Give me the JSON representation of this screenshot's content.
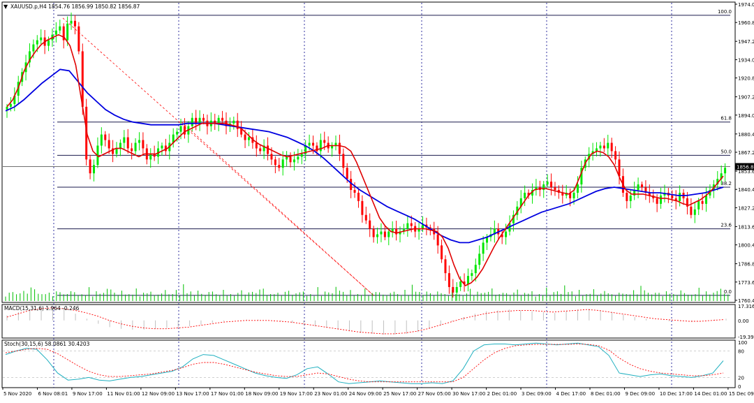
{
  "header": {
    "symbol_line": "XAUUSD.p,H4  1854.76 1856.99 1850.82 1856.87",
    "macd_label": "MACD(15,31,6) 1.964 -0.246",
    "stoch_label": "Stoch(30,15,6) 58.0861 30.4203"
  },
  "colors": {
    "bull": "#00e600",
    "bear": "#ff0000",
    "ma_fast": "#e00000",
    "ma_slow": "#0000e0",
    "fib_line": "#1a1a4d",
    "fan_line": "#ff0000",
    "grid_vertical": "#3030a0",
    "macd_hist": "#c0c0c0",
    "stoch_main": "#20b0c0",
    "stoch_signal": "#ff0000",
    "price_tag_bg": "#000000",
    "price_tag_text": "#ffffff"
  },
  "price_axis": {
    "ticks": [
      "1974.00",
      "1960.80",
      "1947.20",
      "1934.00",
      "1920.80",
      "1907.20",
      "1894.00",
      "1880.40",
      "1867.20",
      "1853.60",
      "1840.40",
      "1827.20",
      "1813.60",
      "1800.40",
      "1786.80",
      "1773.60",
      "1760.40"
    ],
    "current_price": "1856.87"
  },
  "macd_axis": {
    "ticks": [
      "17.316",
      "0.00",
      "-19.392"
    ]
  },
  "stoch_axis": {
    "ticks": [
      "100",
      "80",
      "20",
      "0"
    ]
  },
  "time_axis": {
    "labels": [
      "5 Nov 2020",
      "6 Nov 08:01",
      "9 Nov 17:00",
      "11 Nov 01:00",
      "12 Nov 09:00",
      "13 Nov 17:00",
      "17 Nov 01:00",
      "18 Nov 09:00",
      "19 Nov 17:00",
      "23 Nov 01:00",
      "24 Nov 09:00",
      "25 Nov 17:00",
      "27 Nov 05:00",
      "30 Nov 17:00",
      "2 Dec 01:00",
      "3 Dec 09:00",
      "4 Dec 17:00",
      "8 Dec 01:00",
      "9 Dec 09:00",
      "10 Dec 17:00",
      "14 Dec 01:00",
      "15 Dec 09:00"
    ]
  },
  "fibonacci": [
    {
      "level": "100.0",
      "price": 1966.0
    },
    {
      "level": "61.8",
      "price": 1889.0
    },
    {
      "level": "50.0",
      "price": 1865.0
    },
    {
      "level": "38.2",
      "price": 1842.0
    },
    {
      "level": "23.6",
      "price": 1812.0
    },
    {
      "level": "0.0",
      "price": 1764.0
    }
  ],
  "chart_data": {
    "type": "candlestick",
    "instrument": "XAUUSD.p",
    "timeframe": "H4",
    "ohlc_last": {
      "open": 1854.76,
      "high": 1856.99,
      "low": 1850.82,
      "close": 1856.87
    },
    "ylim": [
      1760.4,
      1974.0
    ],
    "x_labels": [
      "5 Nov 2020",
      "6 Nov 08:01",
      "9 Nov 17:00",
      "11 Nov 01:00",
      "12 Nov 09:00",
      "13 Nov 17:00",
      "17 Nov 01:00",
      "18 Nov 09:00",
      "19 Nov 17:00",
      "23 Nov 01:00",
      "24 Nov 09:00",
      "25 Nov 17:00",
      "27 Nov 05:00",
      "30 Nov 17:00",
      "2 Dec 01:00",
      "3 Dec 09:00",
      "4 Dec 17:00",
      "8 Dec 01:00",
      "9 Dec 09:00",
      "10 Dec 17:00",
      "14 Dec 01:00",
      "15 Dec 09:00"
    ],
    "close_path": [
      1900,
      1902,
      1908,
      1918,
      1925,
      1932,
      1940,
      1945,
      1948,
      1950,
      1944,
      1948,
      1952,
      1955,
      1958,
      1948,
      1960,
      1962,
      1958,
      1940,
      1900,
      1862,
      1852,
      1858,
      1872,
      1880,
      1876,
      1870,
      1866,
      1870,
      1874,
      1878,
      1870,
      1868,
      1874,
      1876,
      1870,
      1862,
      1866,
      1864,
      1870,
      1872,
      1868,
      1874,
      1880,
      1882,
      1886,
      1880,
      1886,
      1892,
      1888,
      1892,
      1890,
      1886,
      1890,
      1888,
      1892,
      1890,
      1886,
      1888,
      1890,
      1884,
      1880,
      1876,
      1878,
      1874,
      1870,
      1868,
      1872,
      1866,
      1862,
      1858,
      1856,
      1862,
      1864,
      1860,
      1862,
      1864,
      1866,
      1872,
      1874,
      1872,
      1868,
      1876,
      1874,
      1870,
      1872,
      1874,
      1866,
      1856,
      1848,
      1840,
      1838,
      1832,
      1822,
      1818,
      1812,
      1806,
      1808,
      1810,
      1806,
      1810,
      1812,
      1808,
      1810,
      1812,
      1816,
      1814,
      1810,
      1812,
      1815,
      1813,
      1812,
      1808,
      1800,
      1790,
      1780,
      1770,
      1766,
      1770,
      1774,
      1772,
      1778,
      1780,
      1786,
      1794,
      1802,
      1806,
      1808,
      1812,
      1808,
      1806,
      1810,
      1816,
      1822,
      1828,
      1834,
      1838,
      1836,
      1840,
      1842,
      1840,
      1844,
      1846,
      1842,
      1840,
      1838,
      1836,
      1838,
      1834,
      1838,
      1844,
      1856,
      1862,
      1866,
      1868,
      1870,
      1872,
      1870,
      1874,
      1868,
      1862,
      1850,
      1838,
      1832,
      1836,
      1840,
      1844,
      1842,
      1838,
      1836,
      1834,
      1830,
      1836,
      1838,
      1836,
      1834,
      1832,
      1838,
      1834,
      1828,
      1822,
      1826,
      1832,
      1830,
      1836,
      1840,
      1844,
      1848,
      1852,
      1856
    ],
    "ma_fast_path": [
      1900,
      1905,
      1914,
      1926,
      1934,
      1940,
      1945,
      1948,
      1950,
      1952,
      1950,
      1944,
      1930,
      1905,
      1880,
      1868,
      1864,
      1866,
      1868,
      1870,
      1870,
      1868,
      1866,
      1864,
      1866,
      1866,
      1866,
      1868,
      1870,
      1874,
      1878,
      1882,
      1884,
      1886,
      1888,
      1888,
      1888,
      1888,
      1888,
      1887,
      1886,
      1884,
      1880,
      1876,
      1873,
      1871,
      1869,
      1867,
      1865,
      1864,
      1865,
      1866,
      1867,
      1868,
      1869,
      1870,
      1872,
      1872,
      1872,
      1871,
      1868,
      1860,
      1850,
      1840,
      1830,
      1820,
      1814,
      1810,
      1809,
      1810,
      1811,
      1812,
      1812,
      1812,
      1811,
      1810,
      1806,
      1798,
      1786,
      1776,
      1771,
      1773,
      1777,
      1783,
      1791,
      1799,
      1806,
      1812,
      1818,
      1824,
      1830,
      1836,
      1840,
      1841,
      1841,
      1840,
      1839,
      1838,
      1837,
      1840,
      1850,
      1860,
      1866,
      1868,
      1867,
      1864,
      1858,
      1848,
      1840,
      1837,
      1837,
      1837,
      1836,
      1835,
      1834,
      1834,
      1833,
      1832,
      1830,
      1829,
      1831,
      1833,
      1836,
      1840,
      1845,
      1850
    ],
    "ma_slow_path": [
      1897,
      1900,
      1905,
      1911,
      1917,
      1922,
      1927,
      1926,
      1918,
      1910,
      1904,
      1898,
      1894,
      1891,
      1889,
      1888,
      1887,
      1887,
      1887,
      1887,
      1888,
      1888,
      1888,
      1888,
      1887,
      1886,
      1885,
      1884,
      1883,
      1882,
      1880,
      1878,
      1875,
      1872,
      1868,
      1863,
      1857,
      1851,
      1845,
      1840,
      1836,
      1832,
      1828,
      1825,
      1822,
      1819,
      1815,
      1811,
      1807,
      1804,
      1802,
      1802,
      1804,
      1806,
      1809,
      1812,
      1815,
      1818,
      1821,
      1824,
      1826,
      1828,
      1830,
      1833,
      1836,
      1839,
      1841,
      1842,
      1841,
      1840,
      1839,
      1838,
      1838,
      1837,
      1836,
      1836,
      1837,
      1838,
      1840,
      1842
    ],
    "volume_relative": [
      0.3,
      0.4,
      0.8,
      0.3,
      0.5,
      0.6,
      0.4,
      1.0,
      0.7,
      0.5,
      0.3,
      0.6,
      0.4,
      0.3,
      0.5,
      0.7,
      0.3,
      0.4,
      0.6,
      0.5,
      0.3
    ],
    "fibonacci_levels": [
      {
        "level": "100.0",
        "price": 1966.0
      },
      {
        "level": "61.8",
        "price": 1889.0
      },
      {
        "level": "50.0",
        "price": 1865.0
      },
      {
        "level": "38.2",
        "price": 1842.0
      },
      {
        "level": "23.6",
        "price": 1812.0
      },
      {
        "level": "0.0",
        "price": 1764.0
      }
    ],
    "macd": {
      "label": "MACD(15,31,6)",
      "value": 1.964,
      "signal": -0.246,
      "ylim": [
        -19.392,
        17.316
      ],
      "hist_path": [
        6,
        10,
        14,
        16,
        17,
        14,
        8,
        2,
        -4,
        -8,
        -10,
        -11,
        -11,
        -10,
        -9,
        -8,
        -7,
        -5,
        -3,
        -1,
        0,
        1,
        1,
        0,
        -1,
        -3,
        -5,
        -7,
        -9,
        -11,
        -13,
        -15,
        -16,
        -17,
        -17,
        -16,
        -14,
        -10,
        -6,
        -1,
        4,
        8,
        11,
        12,
        13,
        12,
        11,
        10,
        9,
        11,
        13,
        14,
        12,
        10,
        7,
        4,
        2,
        0,
        -1,
        -1,
        -2,
        0,
        1,
        2
      ],
      "signal_path": [
        4,
        8,
        12,
        14,
        15,
        14,
        12,
        9,
        5,
        0,
        -4,
        -7,
        -9,
        -10,
        -10,
        -9,
        -8,
        -6,
        -4,
        -2,
        -1,
        0,
        0,
        0,
        -1,
        -2,
        -4,
        -6,
        -8,
        -10,
        -12,
        -14,
        -15,
        -16,
        -16,
        -15,
        -13,
        -10,
        -6,
        -2,
        2,
        5,
        8,
        10,
        11,
        12,
        12,
        11,
        10,
        11,
        12,
        13,
        12,
        10,
        8,
        6,
        4,
        2,
        1,
        0,
        -1,
        -1,
        0,
        1
      ]
    },
    "stochastic": {
      "label": "Stoch(30,15,6)",
      "main_value": 58.0861,
      "signal_value": 30.4203,
      "ylim": [
        0,
        100
      ],
      "levels": [
        80,
        20
      ],
      "main_path": [
        72,
        80,
        86,
        84,
        60,
        30,
        14,
        16,
        20,
        14,
        12,
        16,
        20,
        22,
        26,
        30,
        34,
        44,
        62,
        72,
        70,
        60,
        50,
        40,
        30,
        24,
        20,
        18,
        26,
        40,
        44,
        28,
        10,
        6,
        8,
        10,
        12,
        10,
        8,
        6,
        6,
        8,
        6,
        12,
        40,
        80,
        94,
        96,
        96,
        94,
        96,
        98,
        96,
        94,
        96,
        98,
        94,
        90,
        70,
        30,
        26,
        22,
        26,
        28,
        24,
        22,
        20,
        24,
        30,
        58
      ],
      "signal_path": [
        76,
        80,
        84,
        86,
        84,
        74,
        60,
        46,
        34,
        26,
        22,
        22,
        24,
        26,
        28,
        32,
        36,
        42,
        50,
        54,
        54,
        50,
        44,
        38,
        32,
        28,
        24,
        22,
        22,
        26,
        30,
        28,
        22,
        16,
        12,
        10,
        10,
        10,
        10,
        10,
        10,
        10,
        10,
        10,
        20,
        40,
        60,
        76,
        86,
        92,
        94,
        95,
        95,
        95,
        95,
        96,
        95,
        92,
        82,
        64,
        50,
        40,
        34,
        30,
        28,
        26,
        24,
        24,
        26,
        30
      ]
    }
  }
}
